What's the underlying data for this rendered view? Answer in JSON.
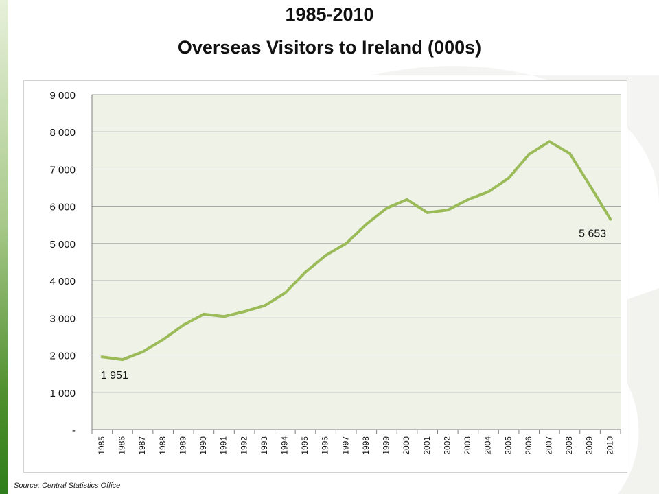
{
  "colors": {
    "line": "#9bbb59",
    "plot_bg": "#eef2e7",
    "grid": "#9a9a9a",
    "text": "#111111"
  },
  "chart_data": {
    "type": "line",
    "title_line1": "1985-2010",
    "title_line2": "Overseas Visitors to Ireland (000s)",
    "xlabel": "",
    "ylabel": "",
    "x": [
      "1985",
      "1986",
      "1987",
      "1988",
      "1989",
      "1990",
      "1991",
      "1992",
      "1993",
      "1994",
      "1995",
      "1996",
      "1997",
      "1998",
      "1999",
      "2000",
      "2001",
      "2002",
      "2003",
      "2004",
      "2005",
      "2006",
      "2007",
      "2008",
      "2009",
      "2010"
    ],
    "series": [
      {
        "values": [
          1951,
          1880,
          2090,
          2420,
          2810,
          3100,
          3040,
          3170,
          3330,
          3670,
          4230,
          4680,
          5000,
          5520,
          5950,
          6180,
          5830,
          5900,
          6180,
          6390,
          6760,
          7400,
          7740,
          7420,
          6550,
          5653
        ]
      }
    ],
    "ylim": [
      0,
      9000
    ],
    "yticks": [
      0,
      1000,
      2000,
      3000,
      4000,
      5000,
      6000,
      7000,
      8000,
      9000
    ],
    "ytick_labels": [
      "-",
      "1 000",
      "2 000",
      "3 000",
      "4 000",
      "5 000",
      "6 000",
      "7 000",
      "8 000",
      "9 000"
    ],
    "data_labels": [
      {
        "x": "1985",
        "text": "1 951"
      },
      {
        "x": "2010",
        "text": "5 653"
      }
    ],
    "grid": true,
    "legend": "none"
  },
  "source": "Source: Central Statistics Office"
}
